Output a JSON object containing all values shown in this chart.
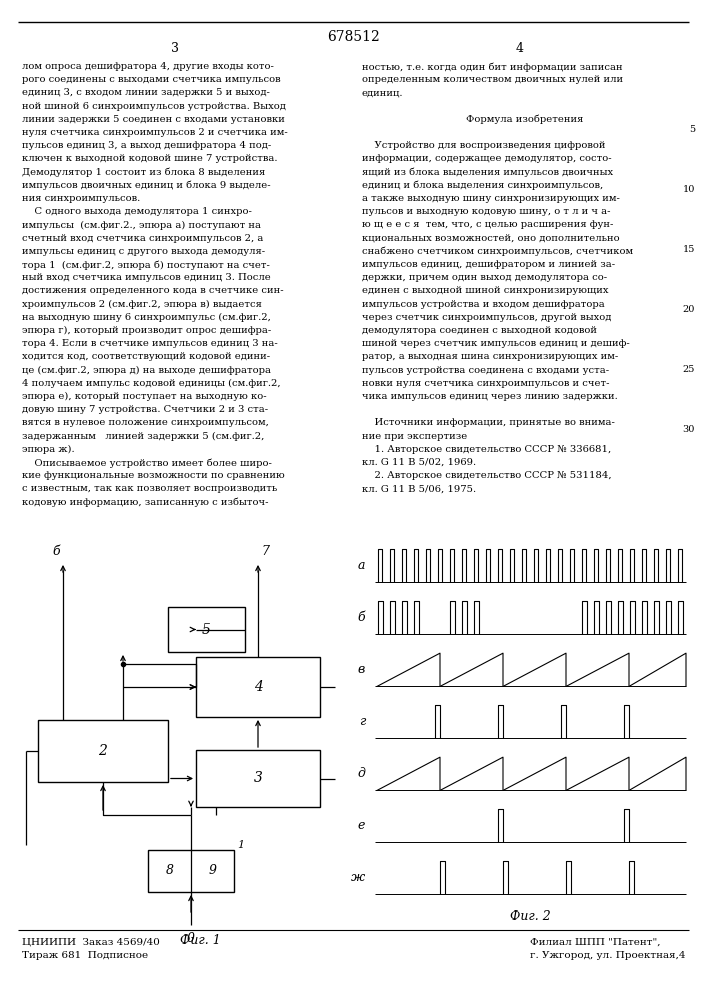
{
  "title": "678512",
  "page_num_left": "3",
  "page_num_right": "4",
  "background_color": "#ffffff",
  "text_color": "#000000",
  "col1_text": [
    "лом опроса дешифратора 4, другие входы кото-",
    "рого соединены с выходами счетчика импульсов",
    "единиц 3, с входом линии задержки 5 и выход-",
    "ной шиной 6 синхроимпульсов устройства. Выход",
    "линии задержки 5 соединен с входами установки",
    "нуля счетчика синхроимпульсов 2 и счетчика им-",
    "пульсов единиц 3, а выход дешифратора 4 под-",
    "ключен к выходной кодовой шине 7 устройства.",
    "Демодулятор 1 состоит из блока 8 выделения",
    "импульсов двоичных единиц и блока 9 выделе-",
    "ния синхроимпульсов.",
    "    С одного выхода демодулятора 1 синхро-",
    "импульсы  (см.фиг.2., эпюра а) поступают на",
    "счетный вход счетчика синхроимпульсов 2, а",
    "импульсы единиц с другого выхода демодуля-",
    "тора 1  (см.фиг.2, эпюра б) поступают на счет-",
    "ный вход счетчика импульсов единиц 3. После",
    "достижения определенного кода в счетчике син-",
    "хроимпульсов 2 (см.фиг.2, эпюра в) выдается",
    "на выходную шину 6 синхроимпульс (см.фиг.2,",
    "эпюра г), который производит опрос дешифра-",
    "тора 4. Если в счетчике импульсов единиц 3 на-",
    "ходится код, соответствующий кодовой едини-",
    "це (см.фиг.2, эпюра д) на выходе дешифратора",
    "4 получаем импульс кодовой единицы (см.фиг.2,",
    "эпюра е), который поступает на выходную ко-",
    "довую шину 7 устройства. Счетчики 2 и 3 ста-",
    "вятся в нулевое положение синхроимпульсом,",
    "задержанным   линией задержки 5 (см.фиг.2,",
    "эпюра ж).",
    "    Описываемое устройство имеет более широ-",
    "кие функциональные возможности по сравнению",
    "с известным, так как позволяет воспроизводить",
    "кодовую информацию, записанную с избыточ-"
  ],
  "col2_text": [
    "ностью, т.е. когда один бит информации записан",
    "определенным количеством двоичных нулей или",
    "единиц.",
    "",
    "Формула изобретения",
    "",
    "    Устройство для воспроизведения цифровой",
    "информации, содержащее демодулятор, состо-",
    "ящий из блока выделения импульсов двоичных",
    "единиц и блока выделения синхроимпульсов,",
    "а также выходную шину синхронизирующих им-",
    "пульсов и выходную кодовую шину, о т л и ч а-",
    "ю щ е е с я  тем, что, с целью расширения фун-",
    "кциональных возможностей, оно дополнительно",
    "снабжено счетчиком синхроимпульсов, счетчиком",
    "импульсов единиц, дешифратором и линией за-",
    "держки, причем один выход демодулятора со-",
    "единен с выходной шиной синхронизирующих",
    "импульсов устройства и входом дешифратора",
    "через счетчик синхроимпульсов, другой выход",
    "демодулятора соединен с выходной кодовой",
    "шиной через счетчик импульсов единиц и дешиф-",
    "ратор, а выходная шина синхронизирующих им-",
    "пульсов устройства соединена с входами уста-",
    "новки нуля счетчика синхроимпульсов и счет-",
    "чика импульсов единиц через линию задержки.",
    "",
    "    Источники информации, принятые во внима-",
    "ние при экспертизе",
    "    1. Авторское свидетельство СССР № 336681,",
    "кл. G 11 B 5/02, 1969.",
    "    2. Авторское свидетельство СССР № 531184,",
    "кл. G 11 B 5/06, 1975."
  ],
  "line_numbers": [
    [
      5,
      870
    ],
    [
      10,
      810
    ],
    [
      15,
      750
    ],
    [
      20,
      690
    ],
    [
      25,
      630
    ],
    [
      30,
      570
    ]
  ],
  "fig1_label": "Фиг. 1",
  "fig2_label": "Фиг. 2",
  "bottom_text_left": "ЦНИИПИ  Заказ 4569/40\nТираж 681  Подписное",
  "bottom_text_right": "Филиал ШПП \"Патент\",\nг. Ужгород, ул. Проектная,4"
}
